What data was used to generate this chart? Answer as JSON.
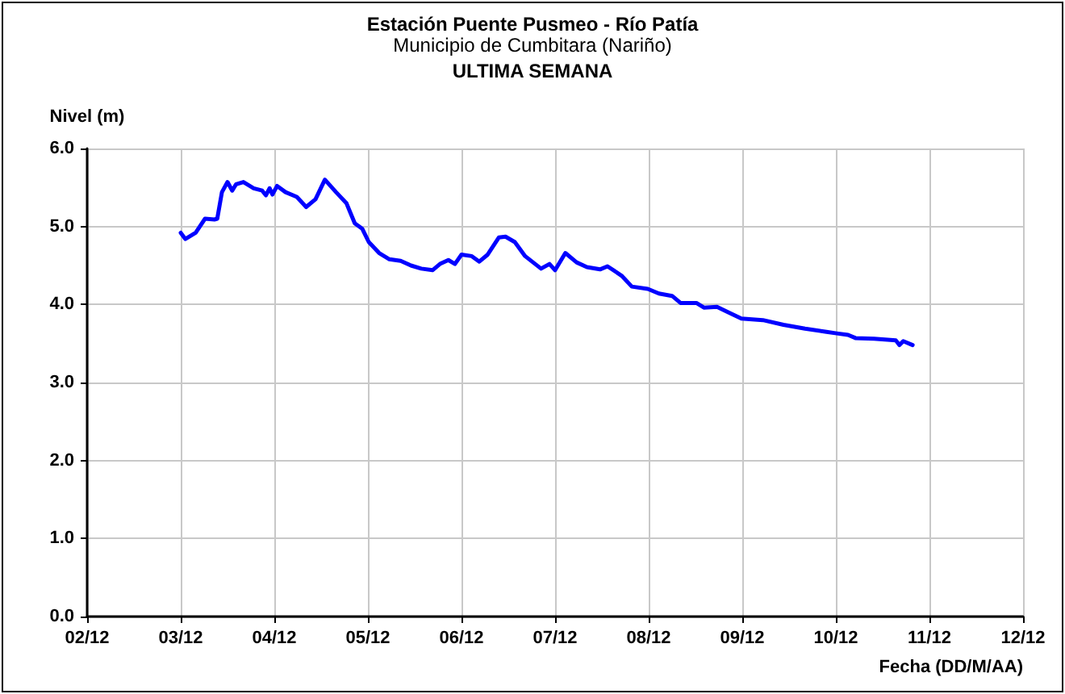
{
  "chart_data": {
    "type": "line",
    "title": "Estación Puente Pusmeo - Río Patía",
    "subtitle": "Municipio de Cumbitara (Nariño)",
    "annotations": [
      "ULTIMA SEMANA"
    ],
    "ylabel": "Nivel (m)",
    "xlabel": "Fecha (DD/M/AA)",
    "xlim": [
      "--12-02",
      "--12-12"
    ],
    "xticks": [
      {
        "value": "--12-02",
        "label": "02/12"
      },
      {
        "value": "--12-03",
        "label": "03/12"
      },
      {
        "value": "--12-04",
        "label": "04/12"
      },
      {
        "value": "--12-05",
        "label": "05/12"
      },
      {
        "value": "--12-06",
        "label": "06/12"
      },
      {
        "value": "--12-07",
        "label": "07/12"
      },
      {
        "value": "--12-08",
        "label": "08/12"
      },
      {
        "value": "--12-09",
        "label": "09/12"
      },
      {
        "value": "--12-10",
        "label": "10/12"
      },
      {
        "value": "--12-11",
        "label": "11/12"
      },
      {
        "value": "--12-12",
        "label": "12/12"
      }
    ],
    "ylim": [
      0,
      6
    ],
    "yticks": [
      {
        "value": 0,
        "label": "0.0"
      },
      {
        "value": 1,
        "label": "1.0"
      },
      {
        "value": 2,
        "label": "2.0"
      },
      {
        "value": 3,
        "label": "3.0"
      },
      {
        "value": 4,
        "label": "4.0"
      },
      {
        "value": 5,
        "label": "5.0"
      },
      {
        "value": 6,
        "label": "6.0"
      }
    ],
    "grid": true,
    "marker": "none",
    "line_style": "solid",
    "x": [
      "--12-03T00:00",
      "--12-03T01:12",
      "--12-03T03:50",
      "--12-03T06:14",
      "--12-03T08:38",
      "--12-03T09:22",
      "--12-03T10:34",
      "--12-03T12:00",
      "--12-03T13:12",
      "--12-03T14:10",
      "--12-03T16:05",
      "--12-03T18:43",
      "--12-03T20:53",
      "--12-03T21:50",
      "--12-03T22:48",
      "--12-03T23:31",
      "--12-04T00:43",
      "--12-04T02:53",
      "--12-04T05:46",
      "--12-04T08:10",
      "--12-04T10:34",
      "--12-04T12:58",
      "--12-04T15:50",
      "--12-04T18:29",
      "--12-04T20:38",
      "--12-04T22:34",
      "--12-05T00:14",
      "--12-05T02:53",
      "--12-05T05:31",
      "--12-05T08:24",
      "--12-05T11:02",
      "--12-05T13:41",
      "--12-05T16:34",
      "--12-05T18:29",
      "--12-05T20:38",
      "--12-05T22:19",
      "--12-06T00:00",
      "--12-06T02:38",
      "--12-06T04:34",
      "--12-06T06:43",
      "--12-06T09:36",
      "--12-06T11:17",
      "--12-06T13:41",
      "--12-06T16:19",
      "--12-06T20:24",
      "--12-06T22:34",
      "--12-07T00:00",
      "--12-07T02:38",
      "--12-07T05:31",
      "--12-07T08:10",
      "--12-07T11:31",
      "--12-07T13:26",
      "--12-07T17:02",
      "--12-07T19:41",
      "--12-07T23:46",
      "--12-08T02:38",
      "--12-08T06:00",
      "--12-08T08:10",
      "--12-08T12:14",
      "--12-08T14:10",
      "--12-08T17:31",
      "--12-08T20:24",
      "--12-08T23:46",
      "--12-09T05:17",
      "--12-09T10:34",
      "--12-09T16:05",
      "--12-09T21:36",
      "--12-10T00:14",
      "--12-10T03:07",
      "--12-10T05:02",
      "--12-10T09:50",
      "--12-10T15:22",
      "--12-10T16:19",
      "--12-10T17:17",
      "--12-10T19:41"
    ],
    "series": [
      {
        "color": "#0000ff",
        "values": [
          4.92,
          4.84,
          4.92,
          5.1,
          5.09,
          5.1,
          5.44,
          5.57,
          5.46,
          5.54,
          5.57,
          5.49,
          5.46,
          5.4,
          5.49,
          5.41,
          5.52,
          5.44,
          5.38,
          5.25,
          5.35,
          5.6,
          5.44,
          5.3,
          5.04,
          4.97,
          4.8,
          4.66,
          4.58,
          4.56,
          4.5,
          4.46,
          4.44,
          4.52,
          4.57,
          4.52,
          4.64,
          4.62,
          4.55,
          4.64,
          4.86,
          4.87,
          4.8,
          4.62,
          4.46,
          4.52,
          4.44,
          4.66,
          4.54,
          4.48,
          4.45,
          4.49,
          4.37,
          4.23,
          4.2,
          4.14,
          4.11,
          4.02,
          4.02,
          3.96,
          3.97,
          3.9,
          3.82,
          3.8,
          3.74,
          3.69,
          3.65,
          3.63,
          3.61,
          3.57,
          3.56,
          3.54,
          3.48,
          3.53,
          3.48
        ]
      }
    ]
  }
}
